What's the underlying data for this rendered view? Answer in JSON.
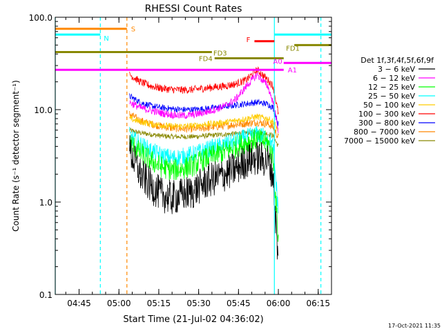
{
  "chart_data": {
    "type": "line",
    "title": "RHESSI Count Rates",
    "xlabel": "Start Time (21-Jul-02 04:36:02)",
    "ylabel": "Count Rate (s⁻¹ detector segment⁻¹)",
    "y_scale": "log",
    "ylim": [
      0.1,
      100
    ],
    "xlim": [
      "04:36:02",
      "06:20:00"
    ],
    "x_ticks": [
      "04:45",
      "05:00",
      "05:15",
      "05:30",
      "05:45",
      "06:00",
      "06:15"
    ],
    "y_ticks": [
      "0.1",
      "1.0",
      "10.0",
      "100.0"
    ],
    "timestamp": "17-Oct-2021 11:35",
    "legend": {
      "placement": "right",
      "title": "Det 1f,3f,4f,5f,6f,9f",
      "entries": [
        {
          "label": "3 − 6 keV",
          "color": "#000000"
        },
        {
          "label": "6 − 12 keV",
          "color": "#ff00ff"
        },
        {
          "label": "12 − 25 keV",
          "color": "#00ff00"
        },
        {
          "label": "25 − 50 keV",
          "color": "#00ffff"
        },
        {
          "label": "50 − 100 keV",
          "color": "#ffcc00"
        },
        {
          "label": "100 − 300 keV",
          "color": "#ff0000"
        },
        {
          "label": "300 − 800 keV",
          "color": "#0000ff"
        },
        {
          "label": "800 − 7000 keV",
          "color": "#ff8800"
        },
        {
          "label": "7000 − 15000 keV",
          "color": "#888800"
        }
      ]
    },
    "series": [
      {
        "name": "3 − 6 keV",
        "color": "#000000",
        "x": [
          "05:04",
          "05:08",
          "05:12",
          "05:16",
          "05:20",
          "05:24",
          "05:28",
          "05:32",
          "05:36",
          "05:40",
          "05:44",
          "05:48",
          "05:52",
          "05:56",
          "05:58",
          "06:00"
        ],
        "y": [
          3.6,
          2.0,
          1.5,
          1.2,
          1.1,
          1.2,
          1.3,
          1.6,
          1.8,
          2.0,
          2.3,
          2.8,
          3.0,
          2.8,
          2.0,
          0.2
        ]
      },
      {
        "name": "6 − 12 keV",
        "color": "#ff00ff",
        "x": [
          "05:04",
          "05:08",
          "05:12",
          "05:16",
          "05:20",
          "05:24",
          "05:28",
          "05:32",
          "05:36",
          "05:40",
          "05:44",
          "05:48",
          "05:52",
          "05:56",
          "05:58",
          "06:00"
        ],
        "y": [
          12,
          10.5,
          9.8,
          9.2,
          8.8,
          8.6,
          8.8,
          9.3,
          10,
          11,
          13,
          18,
          24,
          18,
          12,
          6
        ]
      },
      {
        "name": "12 − 25 keV",
        "color": "#00ff00",
        "x": [
          "05:04",
          "05:08",
          "05:12",
          "05:16",
          "05:20",
          "05:24",
          "05:28",
          "05:32",
          "05:36",
          "05:40",
          "05:44",
          "05:48",
          "05:52",
          "05:56",
          "05:58",
          "06:00"
        ],
        "y": [
          4.4,
          3.4,
          2.8,
          2.4,
          2.2,
          2.3,
          2.5,
          2.9,
          3.2,
          3.5,
          3.9,
          4.4,
          4.8,
          4.4,
          3.0,
          0.4
        ]
      },
      {
        "name": "25 − 50 keV",
        "color": "#00ffff",
        "x": [
          "05:04",
          "05:08",
          "05:12",
          "05:16",
          "05:20",
          "05:24",
          "05:28",
          "05:32",
          "05:36",
          "05:40",
          "05:44",
          "05:48",
          "05:52",
          "05:56",
          "05:58",
          "06:00"
        ],
        "y": [
          5.2,
          4.2,
          3.6,
          3.2,
          3.0,
          3.1,
          3.3,
          3.6,
          3.9,
          4.2,
          4.6,
          5.0,
          5.4,
          5.0,
          4.0,
          0.8
        ]
      },
      {
        "name": "50 − 100 keV",
        "color": "#ffcc00",
        "x": [
          "05:04",
          "05:08",
          "05:12",
          "05:16",
          "05:20",
          "05:24",
          "05:28",
          "05:32",
          "05:36",
          "05:40",
          "05:44",
          "05:48",
          "05:52",
          "05:56",
          "05:58",
          "06:00"
        ],
        "y": [
          8.0,
          7.4,
          7.0,
          6.8,
          6.6,
          6.6,
          6.7,
          6.9,
          7.1,
          7.3,
          7.6,
          8.0,
          8.4,
          8.0,
          7.4,
          6.0
        ]
      },
      {
        "name": "100 − 300 keV",
        "color": "#ff0000",
        "x": [
          "05:04",
          "05:08",
          "05:12",
          "05:16",
          "05:20",
          "05:24",
          "05:28",
          "05:32",
          "05:36",
          "05:40",
          "05:44",
          "05:48",
          "05:52",
          "05:56",
          "05:58",
          "06:00"
        ],
        "y": [
          24,
          20,
          18,
          17,
          16.5,
          16.3,
          16.5,
          17,
          17.5,
          18,
          19,
          21,
          27,
          21,
          18,
          9
        ]
      },
      {
        "name": "300 − 800 keV",
        "color": "#0000ff",
        "x": [
          "05:04",
          "05:08",
          "05:12",
          "05:16",
          "05:20",
          "05:24",
          "05:28",
          "05:32",
          "05:36",
          "05:40",
          "05:44",
          "05:48",
          "05:52",
          "05:56",
          "05:58",
          "06:00"
        ],
        "y": [
          14,
          12,
          11,
          10.5,
          10.2,
          10,
          10,
          10.2,
          10.5,
          10.8,
          11.2,
          11.6,
          12,
          11.5,
          10.5,
          7
        ]
      },
      {
        "name": "800 − 7000 keV",
        "color": "#ff8800",
        "x": [
          "05:04",
          "05:08",
          "05:12",
          "05:16",
          "05:20",
          "05:24",
          "05:28",
          "05:32",
          "05:36",
          "05:40",
          "05:44",
          "05:48",
          "05:52",
          "05:56",
          "05:58",
          "06:00"
        ],
        "y": [
          9.0,
          7.6,
          7.0,
          6.6,
          6.3,
          6.2,
          6.2,
          6.3,
          6.5,
          6.7,
          6.9,
          7.1,
          7.3,
          7.0,
          6.5,
          5.0
        ]
      },
      {
        "name": "7000 − 15000 keV",
        "color": "#888800",
        "x": [
          "05:04",
          "05:08",
          "05:12",
          "05:16",
          "05:20",
          "05:24",
          "05:28",
          "05:32",
          "05:36",
          "05:40",
          "05:44",
          "05:48",
          "05:52",
          "05:56",
          "05:58",
          "06:00"
        ],
        "y": [
          6.0,
          5.6,
          5.4,
          5.2,
          5.1,
          5.1,
          5.1,
          5.2,
          5.3,
          5.4,
          5.5,
          5.6,
          5.7,
          5.5,
          5.2,
          4.0
        ]
      }
    ],
    "vertical_markers": [
      {
        "time": "04:36:02",
        "color": "#00ffff",
        "style": "solid"
      },
      {
        "time": "04:53:00",
        "color": "#00ffff",
        "style": "dashed"
      },
      {
        "time": "05:03:00",
        "color": "#ff8800",
        "style": "dashed"
      },
      {
        "time": "05:58:30",
        "color": "#00ffff",
        "style": "solid"
      },
      {
        "time": "06:16:00",
        "color": "#00ffff",
        "style": "dashed"
      }
    ],
    "interval_bars": [
      {
        "label": "S",
        "color": "#ff8800",
        "start": "04:36:02",
        "end": "05:03:00",
        "level": 75
      },
      {
        "label": "N",
        "color": "#00ffff",
        "start": "04:36:02",
        "end": "04:53:00",
        "level": 65
      },
      {
        "label": "F",
        "color": "#ff0000",
        "start": "05:51:00",
        "end": "05:58:30",
        "level": 55
      },
      {
        "label": "FD1",
        "color": "#888800",
        "start": "06:06:00",
        "end": "06:20:00",
        "level": 50
      },
      {
        "label": "FD3",
        "color": "#888800",
        "start": "04:36:02",
        "end": "05:35:00",
        "level": 42
      },
      {
        "label": "FD4",
        "color": "#888800",
        "start": "05:36:00",
        "end": "06:02:00",
        "level": 36
      },
      {
        "label": "A0",
        "color": "#ff00ff",
        "start": "06:02:00",
        "end": "06:20:00",
        "level": 32
      },
      {
        "label": "A1",
        "color": "#ff00ff",
        "start": "04:36:02",
        "end": "06:02:00",
        "level": 27
      },
      {
        "label": "",
        "color": "#00ffff",
        "start": "05:58:30",
        "end": "06:20:00",
        "level": 65
      }
    ]
  }
}
